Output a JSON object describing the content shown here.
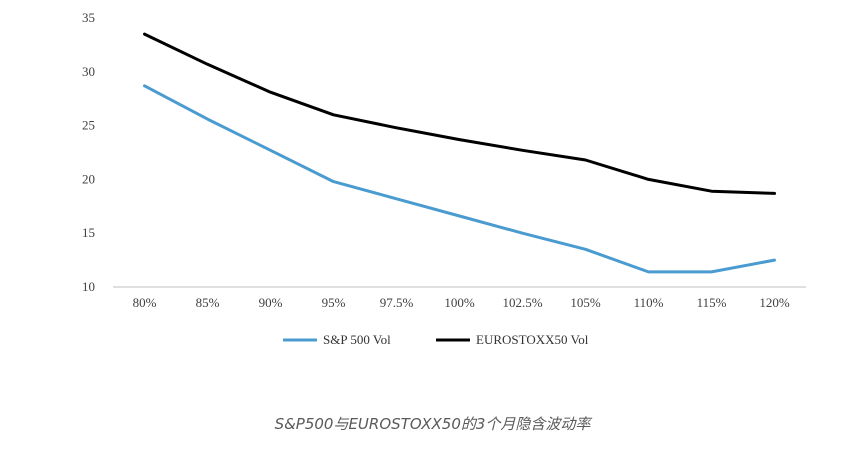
{
  "chart_data": {
    "type": "line",
    "categories": [
      "80%",
      "85%",
      "90%",
      "95%",
      "97.5%",
      "100%",
      "102.5%",
      "105%",
      "110%",
      "115%",
      "120%"
    ],
    "series": [
      {
        "name": "S&P 500 Vol",
        "color": "#4a9bd0",
        "values": [
          28.7,
          25.6,
          22.7,
          19.8,
          18.2,
          16.6,
          15.0,
          13.5,
          11.4,
          11.4,
          12.5
        ]
      },
      {
        "name": "EUROSTOXX50 Vol",
        "color": "#000000",
        "values": [
          33.5,
          30.7,
          28.1,
          26.0,
          24.8,
          23.7,
          22.7,
          21.8,
          20.0,
          18.9,
          18.7
        ]
      }
    ],
    "yticks": [
      10,
      15,
      20,
      25,
      30,
      35
    ],
    "ylim": [
      10,
      35
    ],
    "grid": false,
    "legend": "bottom",
    "caption": "S&P500与EUROSTOXX50的3个月隐含波动率"
  }
}
